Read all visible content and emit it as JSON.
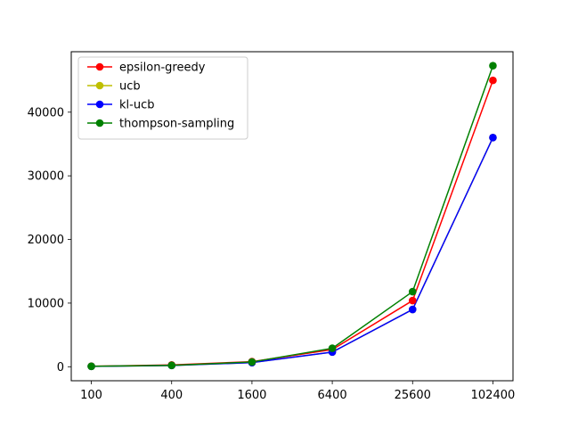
{
  "chart_data": {
    "type": "line",
    "categories": [
      "100",
      "400",
      "1600",
      "6400",
      "25600",
      "102400"
    ],
    "x": [
      100,
      400,
      1600,
      6400,
      25600,
      102400
    ],
    "x_scale": "log",
    "ylim": [
      -2200,
      49500
    ],
    "yticks": [
      0,
      10000,
      20000,
      30000,
      40000
    ],
    "grid": false,
    "legend_position": "top-left",
    "series": [
      {
        "name": "epsilon-greedy",
        "color": "#ff0000",
        "values": [
          80,
          280,
          800,
          2700,
          10400,
          45000
        ]
      },
      {
        "name": "ucb",
        "color": "#bfbf00",
        "values": [
          60,
          200,
          650,
          2300,
          9000,
          36000
        ]
      },
      {
        "name": "kl-ucb",
        "color": "#0000ff",
        "values": [
          60,
          200,
          650,
          2300,
          9000,
          36000
        ]
      },
      {
        "name": "thompson-sampling",
        "color": "#008000",
        "values": [
          70,
          220,
          750,
          2900,
          11800,
          47300
        ]
      }
    ]
  }
}
